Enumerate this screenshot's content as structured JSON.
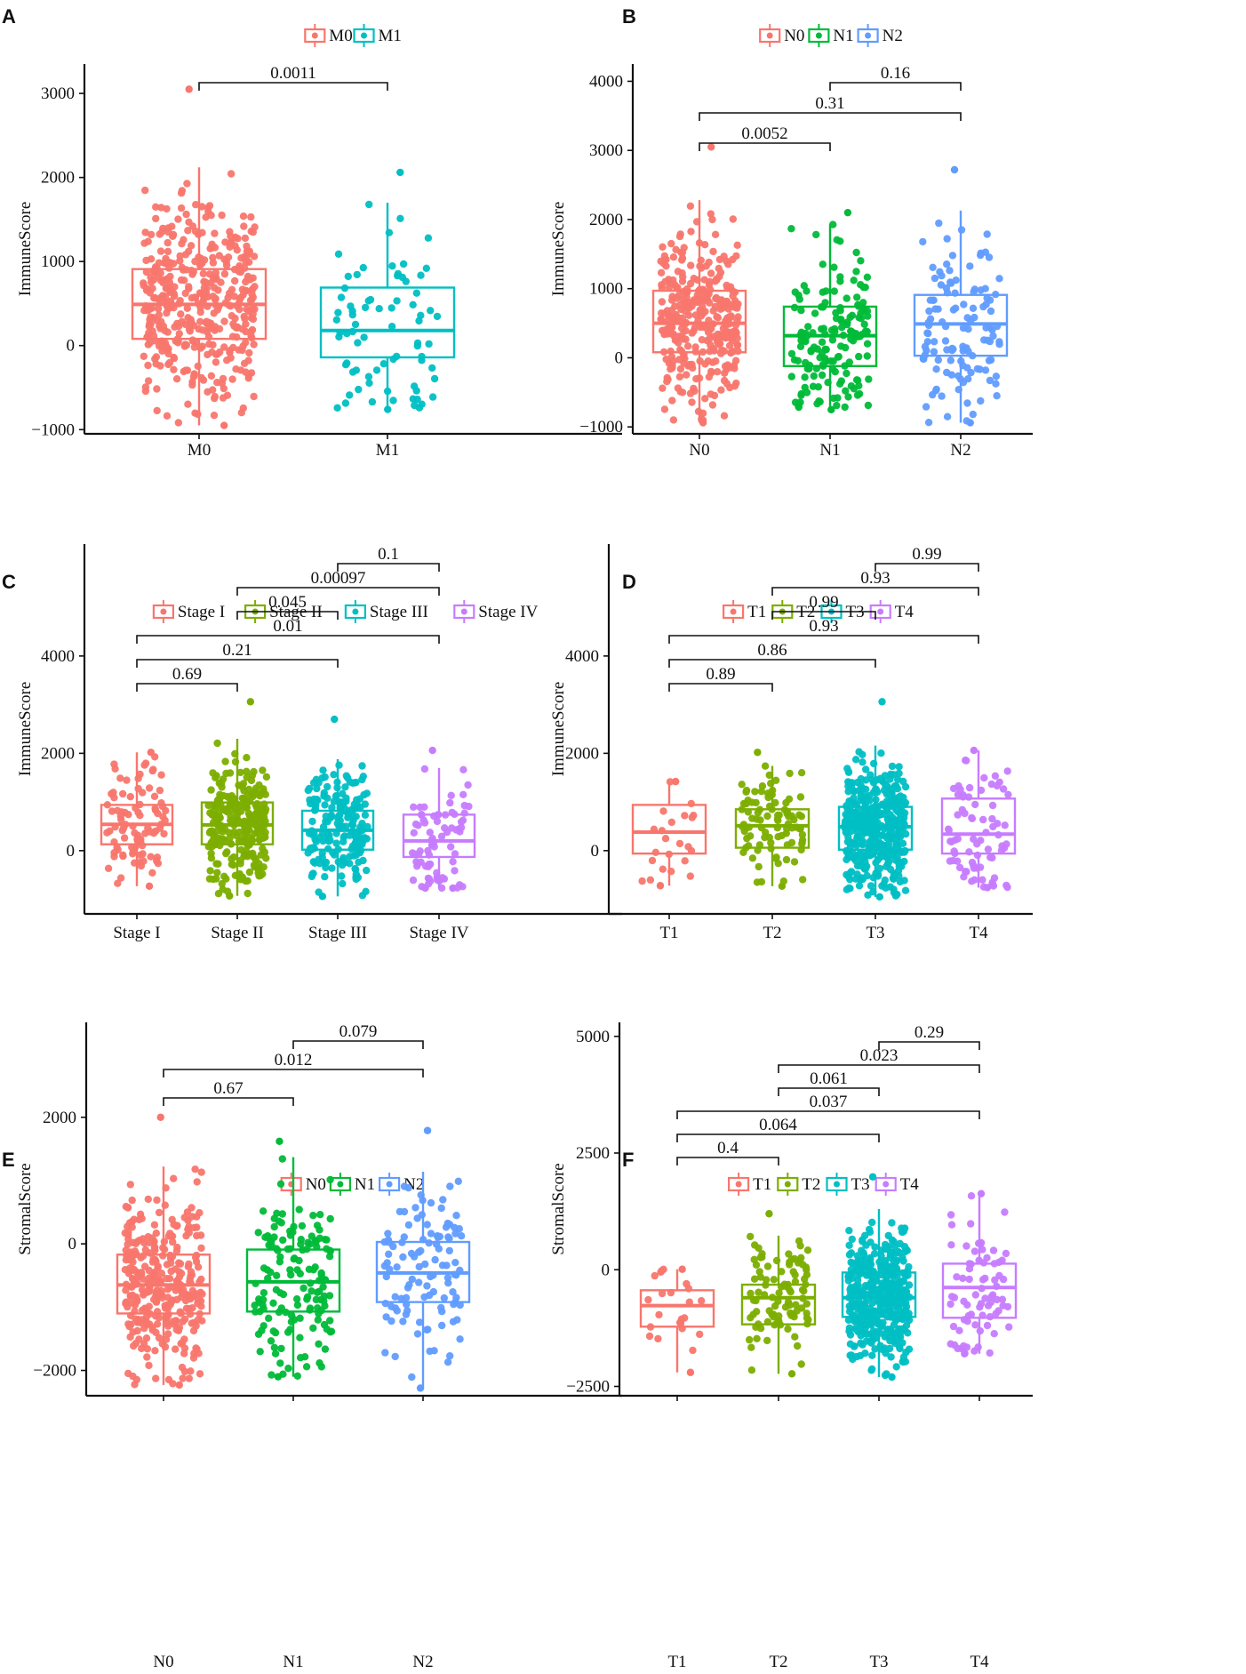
{
  "chart_data": [
    {
      "panel": "A",
      "type": "box",
      "ylabel": "ImmuneScore",
      "xlabel": "",
      "ylim": [
        -1050,
        3350
      ],
      "yticks": [
        -1000,
        0,
        1000,
        2000,
        3000
      ],
      "categories": [
        "M0",
        "M1"
      ],
      "colors": [
        "#F8766D",
        "#00BFC4"
      ],
      "legend": [
        "M0",
        "M1"
      ],
      "legend_position": "top",
      "boxes": [
        {
          "group": "M0",
          "q1": 80,
          "median": 490,
          "q3": 910,
          "whisker_low": -950,
          "whisker_high": 2120,
          "n_points": 420,
          "max_point": 3050
        },
        {
          "group": "M1",
          "q1": -140,
          "median": 180,
          "q3": 690,
          "whisker_low": -760,
          "whisker_high": 1700,
          "n_points": 75,
          "max_point": 2060
        }
      ],
      "comparisons": [
        {
          "from": "M0",
          "to": "M1",
          "p": "0.0011"
        }
      ]
    },
    {
      "panel": "B",
      "type": "box",
      "ylabel": "ImmuneScore",
      "xlabel": "",
      "ylim": [
        -1100,
        4250
      ],
      "yticks": [
        -1000,
        0,
        1000,
        2000,
        3000,
        4000
      ],
      "categories": [
        "N0",
        "N1",
        "N2"
      ],
      "colors": [
        "#F8766D",
        "#00BA38",
        "#619CFF"
      ],
      "legend": [
        "N0",
        "N1",
        "N2"
      ],
      "legend_position": "top",
      "boxes": [
        {
          "group": "N0",
          "q1": 80,
          "median": 500,
          "q3": 970,
          "whisker_low": -940,
          "whisker_high": 2280,
          "n_points": 330,
          "max_point": 3050
        },
        {
          "group": "N1",
          "q1": -120,
          "median": 320,
          "q3": 740,
          "whisker_low": -750,
          "whisker_high": 1930,
          "n_points": 160,
          "max_point": 2100
        },
        {
          "group": "N2",
          "q1": 30,
          "median": 490,
          "q3": 910,
          "whisker_low": -940,
          "whisker_high": 2130,
          "n_points": 120,
          "max_point": 2720
        }
      ],
      "comparisons": [
        {
          "from": "N1",
          "to": "N2",
          "p": "0.16"
        },
        {
          "from": "N0",
          "to": "N2",
          "p": "0.31"
        },
        {
          "from": "N0",
          "to": "N1",
          "p": "0.0052"
        }
      ]
    },
    {
      "panel": "C",
      "type": "box",
      "ylabel": "ImmuneScore",
      "xlabel": "",
      "ylim": [
        -1300,
        6300
      ],
      "yticks": [
        0,
        2000,
        4000
      ],
      "categories": [
        "Stage I",
        "Stage II",
        "Stage III",
        "Stage IV"
      ],
      "colors": [
        "#F8766D",
        "#7CAE00",
        "#00BFC4",
        "#C77CFF"
      ],
      "legend": [
        "Stage I",
        "Stage II",
        "Stage III",
        "Stage IV"
      ],
      "legend_position": "top",
      "boxes": [
        {
          "group": "Stage I",
          "q1": 130,
          "median": 540,
          "q3": 940,
          "whisker_low": -730,
          "whisker_high": 2020,
          "n_points": 90,
          "max_point": 2020
        },
        {
          "group": "Stage II",
          "q1": 130,
          "median": 530,
          "q3": 990,
          "whisker_low": -930,
          "whisker_high": 2300,
          "n_points": 260,
          "max_point": 3060
        },
        {
          "group": "Stage III",
          "q1": 20,
          "median": 420,
          "q3": 820,
          "whisker_low": -940,
          "whisker_high": 1880,
          "n_points": 190,
          "max_point": 2700
        },
        {
          "group": "Stage IV",
          "q1": -130,
          "median": 200,
          "q3": 740,
          "whisker_low": -770,
          "whisker_high": 1700,
          "n_points": 80,
          "max_point": 2060
        }
      ],
      "comparisons": [
        {
          "from": "Stage III",
          "to": "Stage IV",
          "p": "0.1"
        },
        {
          "from": "Stage II",
          "to": "Stage IV",
          "p": "0.00097"
        },
        {
          "from": "Stage II",
          "to": "Stage III",
          "p": "0.045"
        },
        {
          "from": "Stage I",
          "to": "Stage IV",
          "p": "0.01"
        },
        {
          "from": "Stage I",
          "to": "Stage III",
          "p": "0.21"
        },
        {
          "from": "Stage I",
          "to": "Stage II",
          "p": "0.69"
        }
      ]
    },
    {
      "panel": "D",
      "type": "box",
      "ylabel": "ImmuneScore",
      "xlabel": "",
      "ylim": [
        -1300,
        6300
      ],
      "yticks": [
        0,
        2000,
        4000
      ],
      "categories": [
        "T1",
        "T2",
        "T3",
        "T4"
      ],
      "colors": [
        "#F8766D",
        "#7CAE00",
        "#00BFC4",
        "#C77CFF"
      ],
      "legend": [
        "T1",
        "T2",
        "T3",
        "T4"
      ],
      "legend_position": "top",
      "boxes": [
        {
          "group": "T1",
          "q1": -60,
          "median": 380,
          "q3": 940,
          "whisker_low": -720,
          "whisker_high": 1420,
          "n_points": 22,
          "max_point": 1420
        },
        {
          "group": "T2",
          "q1": 60,
          "median": 510,
          "q3": 850,
          "whisker_low": -730,
          "whisker_high": 1740,
          "n_points": 95,
          "max_point": 2020
        },
        {
          "group": "T3",
          "q1": 20,
          "median": 490,
          "q3": 900,
          "whisker_low": -950,
          "whisker_high": 2160,
          "n_points": 420,
          "max_point": 3060
        },
        {
          "group": "T4",
          "q1": -60,
          "median": 340,
          "q3": 1070,
          "whisker_low": -760,
          "whisker_high": 2060,
          "n_points": 75,
          "max_point": 2060
        }
      ],
      "comparisons": [
        {
          "from": "T3",
          "to": "T4",
          "p": "0.99"
        },
        {
          "from": "T2",
          "to": "T4",
          "p": "0.93"
        },
        {
          "from": "T2",
          "to": "T3",
          "p": "0.99"
        },
        {
          "from": "T1",
          "to": "T4",
          "p": "0.93"
        },
        {
          "from": "T1",
          "to": "T3",
          "p": "0.86"
        },
        {
          "from": "T1",
          "to": "T2",
          "p": "0.89"
        }
      ]
    },
    {
      "panel": "E",
      "type": "box",
      "ylabel": "StromalScore",
      "xlabel": "",
      "ylim": [
        -2400,
        3500
      ],
      "yticks": [
        -2000,
        0,
        2000
      ],
      "categories": [
        "N0",
        "N1",
        "N2"
      ],
      "colors": [
        "#F8766D",
        "#00BA38",
        "#619CFF"
      ],
      "legend": [
        "N0",
        "N1",
        "N2"
      ],
      "legend_position": "top",
      "boxes": [
        {
          "group": "N0",
          "q1": -1100,
          "median": -650,
          "q3": -170,
          "whisker_low": -2230,
          "whisker_high": 1220,
          "n_points": 330,
          "max_point": 2000
        },
        {
          "group": "N1",
          "q1": -1070,
          "median": -600,
          "q3": -90,
          "whisker_low": -2100,
          "whisker_high": 1370,
          "n_points": 150,
          "max_point": 1620
        },
        {
          "group": "N2",
          "q1": -920,
          "median": -460,
          "q3": 30,
          "whisker_low": -2280,
          "whisker_high": 1140,
          "n_points": 110,
          "max_point": 1790
        }
      ],
      "comparisons": [
        {
          "from": "N1",
          "to": "N2",
          "p": "0.079"
        },
        {
          "from": "N0",
          "to": "N2",
          "p": "0.012"
        },
        {
          "from": "N0",
          "to": "N1",
          "p": "0.67"
        }
      ]
    },
    {
      "panel": "F",
      "type": "box",
      "ylabel": "StromalScore",
      "xlabel": "",
      "ylim": [
        -2700,
        5300
      ],
      "yticks": [
        -2500,
        0,
        2500,
        5000
      ],
      "categories": [
        "T1",
        "T2",
        "T3",
        "T4"
      ],
      "colors": [
        "#F8766D",
        "#7CAE00",
        "#00BFC4",
        "#C77CFF"
      ],
      "legend": [
        "T1",
        "T2",
        "T3",
        "T4"
      ],
      "legend_position": "top",
      "boxes": [
        {
          "group": "T1",
          "q1": -1220,
          "median": -770,
          "q3": -440,
          "whisker_low": -2200,
          "whisker_high": 10,
          "n_points": 22,
          "max_point": 10
        },
        {
          "group": "T2",
          "q1": -1170,
          "median": -600,
          "q3": -320,
          "whisker_low": -2230,
          "whisker_high": 730,
          "n_points": 95,
          "max_point": 1200
        },
        {
          "group": "T3",
          "q1": -1010,
          "median": -600,
          "q3": -60,
          "whisker_low": -2300,
          "whisker_high": 1300,
          "n_points": 420,
          "max_point": 1990
        },
        {
          "group": "T4",
          "q1": -1030,
          "median": -380,
          "q3": 130,
          "whisker_low": -1800,
          "whisker_high": 1630,
          "n_points": 75,
          "max_point": 1630
        }
      ],
      "comparisons": [
        {
          "from": "T3",
          "to": "T4",
          "p": "0.29"
        },
        {
          "from": "T2",
          "to": "T4",
          "p": "0.023"
        },
        {
          "from": "T2",
          "to": "T3",
          "p": "0.061"
        },
        {
          "from": "T1",
          "to": "T4",
          "p": "0.037"
        },
        {
          "from": "T1",
          "to": "T3",
          "p": "0.064"
        },
        {
          "from": "T1",
          "to": "T2",
          "p": "0.4"
        }
      ]
    }
  ]
}
